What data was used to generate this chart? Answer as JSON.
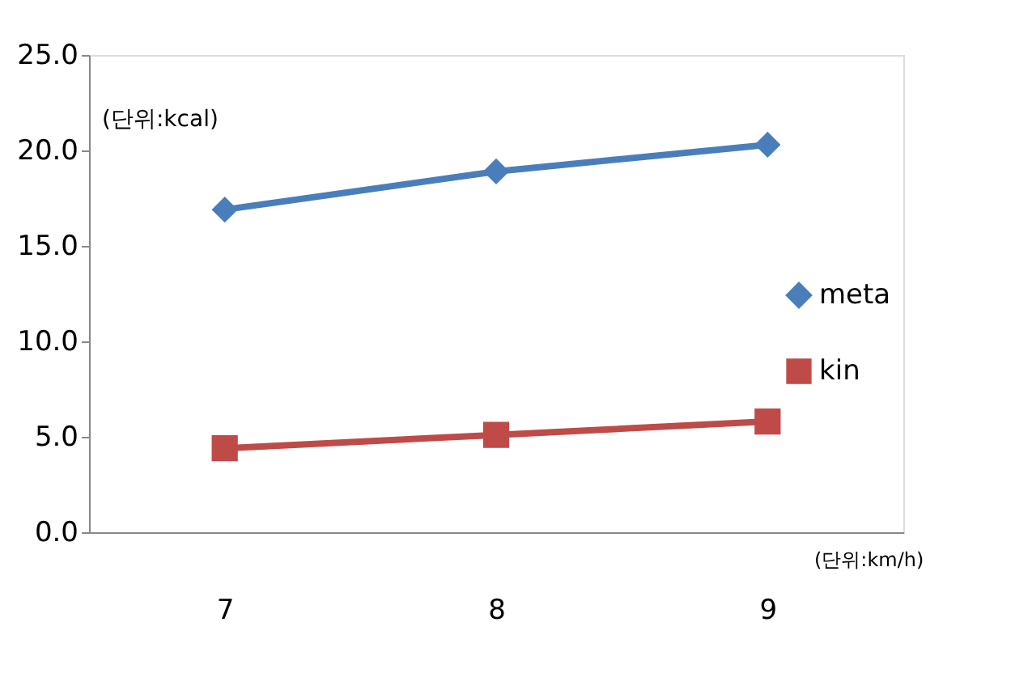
{
  "chart_data": {
    "type": "line",
    "categories": [
      "7",
      "8",
      "9"
    ],
    "series": [
      {
        "name": "meta",
        "color": "#4a7ebb",
        "values": [
          16.9,
          18.9,
          20.3
        ],
        "marker": "diamond"
      },
      {
        "name": "kin",
        "color": "#be4b48",
        "values": [
          4.4,
          5.1,
          5.8
        ],
        "marker": "square"
      }
    ],
    "ylim": [
      0,
      25
    ],
    "yticks": [
      {
        "value": 0,
        "label": "0.0"
      },
      {
        "value": 5,
        "label": "5.0"
      },
      {
        "value": 10,
        "label": "10.0"
      },
      {
        "value": 15,
        "label": "15.0"
      },
      {
        "value": 20,
        "label": "20.0"
      },
      {
        "value": 25,
        "label": "25.0"
      }
    ],
    "annotations": [
      "(단위:kcal)",
      "(단위:km/h)"
    ],
    "legend": "right",
    "grid": false,
    "line_style": "solid"
  }
}
